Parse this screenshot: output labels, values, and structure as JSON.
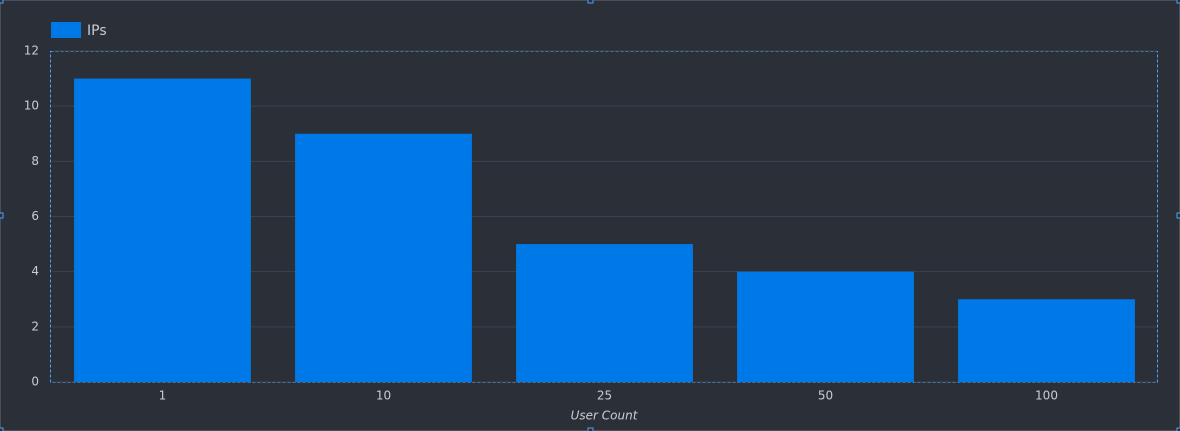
{
  "chart_data": {
    "type": "bar",
    "x_label": "User Count",
    "categories": [
      "1",
      "10",
      "25",
      "50",
      "100"
    ],
    "series": [
      {
        "name": "IPs",
        "color": "#0079e8",
        "values": [
          11,
          9,
          5,
          4,
          3
        ]
      }
    ],
    "ylim": [
      0,
      12
    ],
    "yticks": [
      0,
      2,
      4,
      6,
      8,
      10,
      12
    ],
    "grid": true,
    "legend": "top-left"
  }
}
